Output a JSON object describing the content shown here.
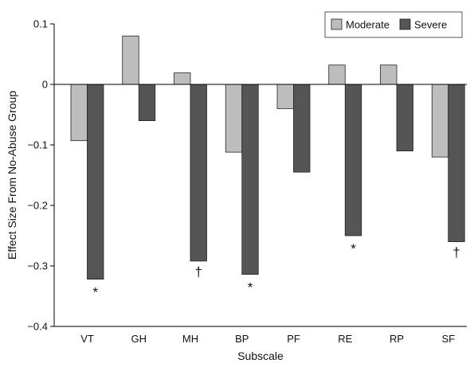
{
  "chart_data": {
    "type": "bar",
    "xlabel": "Subscale",
    "ylabel": "Effect Size From No-Abuse Group",
    "ylim": [
      -0.4,
      0.1
    ],
    "yticks": [
      0.1,
      0,
      -0.1,
      -0.2,
      -0.3,
      -0.4
    ],
    "ytick_labels": [
      "0.1",
      "0",
      "−0.1",
      "−0.2",
      "−0.3",
      "−0.4"
    ],
    "categories": [
      "VT",
      "GH",
      "MH",
      "BP",
      "PF",
      "RE",
      "RP",
      "SF"
    ],
    "series": [
      {
        "name": "Moderate",
        "color": "#bdbdbd",
        "values": [
          -0.093,
          0.08,
          0.019,
          -0.112,
          -0.04,
          0.032,
          0.032,
          -0.12
        ]
      },
      {
        "name": "Severe",
        "color": "#555555",
        "values": [
          -0.322,
          -0.06,
          -0.292,
          -0.314,
          -0.145,
          -0.25,
          -0.11,
          -0.26
        ]
      }
    ],
    "annotations": [
      {
        "category": "VT",
        "series": "Severe",
        "symbol": "*"
      },
      {
        "category": "MH",
        "series": "Severe",
        "symbol": "†"
      },
      {
        "category": "BP",
        "series": "Severe",
        "symbol": "*"
      },
      {
        "category": "RE",
        "series": "Severe",
        "symbol": "*"
      },
      {
        "category": "SF",
        "series": "Severe",
        "symbol": "†"
      }
    ],
    "legend_position": "top-right",
    "grid": false
  }
}
